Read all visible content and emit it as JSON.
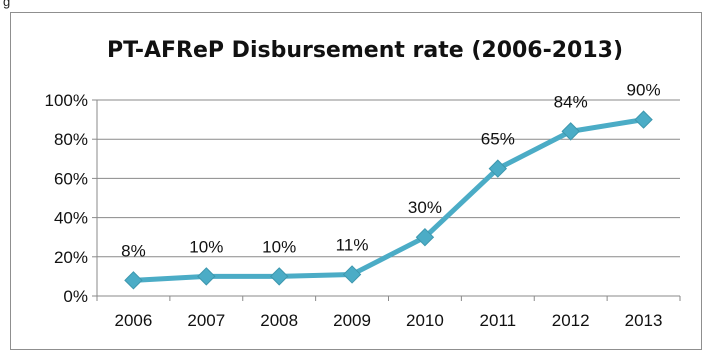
{
  "header": {
    "label": "g"
  },
  "chart_data": {
    "type": "line",
    "title": "PT-AFReP Disbursement rate (2006-2013)",
    "xlabel": "",
    "ylabel": "",
    "categories": [
      "2006",
      "2007",
      "2008",
      "2009",
      "2010",
      "2011",
      "2012",
      "2013"
    ],
    "series": [
      {
        "values": [
          8,
          10,
          10,
          11,
          30,
          65,
          84,
          90
        ],
        "color": "#4bacc6",
        "marker": "diamond"
      }
    ],
    "data_labels": [
      "8%",
      "10%",
      "10%",
      "11%",
      "30%",
      "65%",
      "84%",
      "90%"
    ],
    "y_tick_labels": [
      "0%",
      "20%",
      "40%",
      "60%",
      "80%",
      "100%"
    ],
    "ylim": [
      0,
      100
    ],
    "y_ticks": [
      0,
      20,
      40,
      60,
      80,
      100
    ],
    "grid": true,
    "legend": "none"
  }
}
